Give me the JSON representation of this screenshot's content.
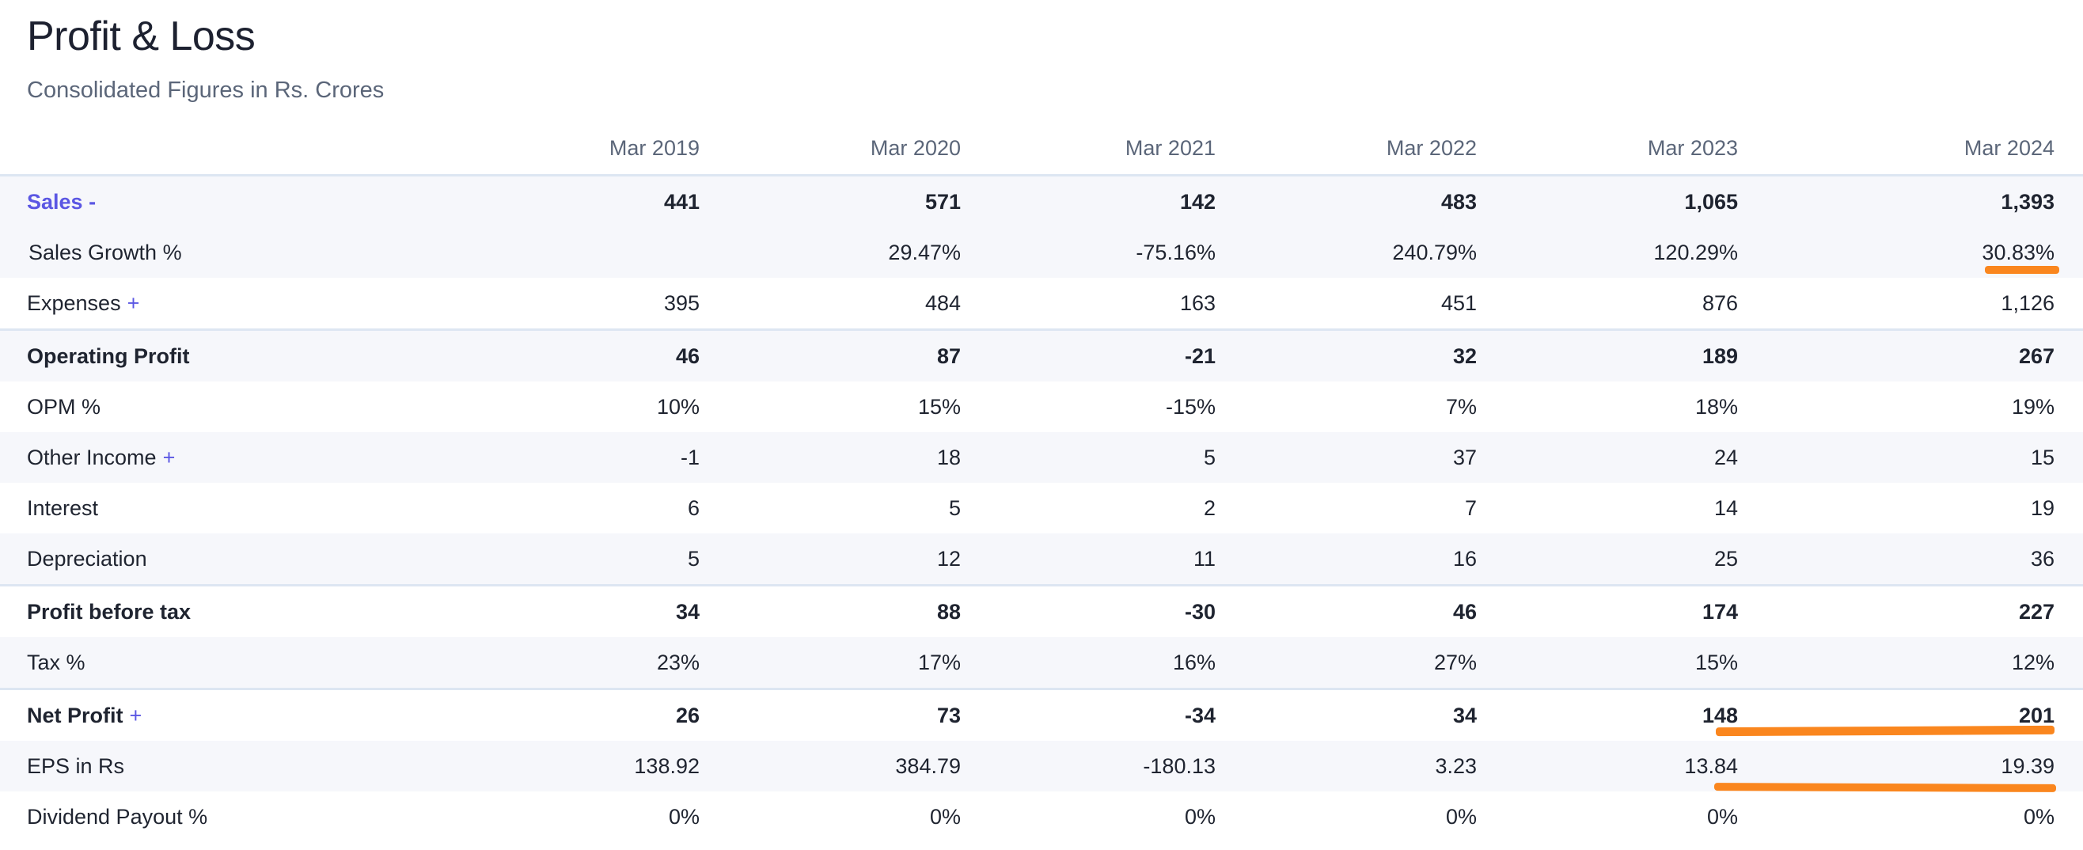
{
  "page": {
    "title": "Profit & Loss",
    "subtitle": "Consolidated Figures in Rs. Crores"
  },
  "table": {
    "columns": [
      "Mar 2019",
      "Mar 2020",
      "Mar 2021",
      "Mar 2022",
      "Mar 2023",
      "Mar 2024"
    ],
    "rows": [
      {
        "label": "Sales",
        "toggle": "-",
        "values": [
          "441",
          "571",
          "142",
          "483",
          "1,065",
          "1,393"
        ]
      },
      {
        "label": "Sales Growth %",
        "values": [
          "",
          "29.47%",
          "-75.16%",
          "240.79%",
          "120.29%",
          "30.83%"
        ]
      },
      {
        "label": "Expenses",
        "toggle": "+",
        "values": [
          "395",
          "484",
          "163",
          "451",
          "876",
          "1,126"
        ]
      },
      {
        "label": "Operating Profit",
        "values": [
          "46",
          "87",
          "-21",
          "32",
          "189",
          "267"
        ]
      },
      {
        "label": "OPM %",
        "values": [
          "10%",
          "15%",
          "-15%",
          "7%",
          "18%",
          "19%"
        ]
      },
      {
        "label": "Other Income",
        "toggle": "+",
        "values": [
          "-1",
          "18",
          "5",
          "37",
          "24",
          "15"
        ]
      },
      {
        "label": "Interest",
        "values": [
          "6",
          "5",
          "2",
          "7",
          "14",
          "19"
        ]
      },
      {
        "label": "Depreciation",
        "values": [
          "5",
          "12",
          "11",
          "16",
          "25",
          "36"
        ]
      },
      {
        "label": "Profit before tax",
        "values": [
          "34",
          "88",
          "-30",
          "46",
          "174",
          "227"
        ]
      },
      {
        "label": "Tax %",
        "values": [
          "23%",
          "17%",
          "16%",
          "27%",
          "15%",
          "12%"
        ]
      },
      {
        "label": "Net Profit",
        "toggle": "+",
        "values": [
          "26",
          "73",
          "-34",
          "34",
          "148",
          "201"
        ]
      },
      {
        "label": "EPS in Rs",
        "values": [
          "138.92",
          "384.79",
          "-180.13",
          "3.23",
          "13.84",
          "19.39"
        ]
      },
      {
        "label": "Dividend Payout %",
        "values": [
          "0%",
          "0%",
          "0%",
          "0%",
          "0%",
          "0%"
        ]
      }
    ]
  },
  "colors": {
    "accent": "#5b57e3",
    "highlight": "#fa861e",
    "row_alt": "#f6f7fb",
    "divider": "#dde6f2"
  }
}
